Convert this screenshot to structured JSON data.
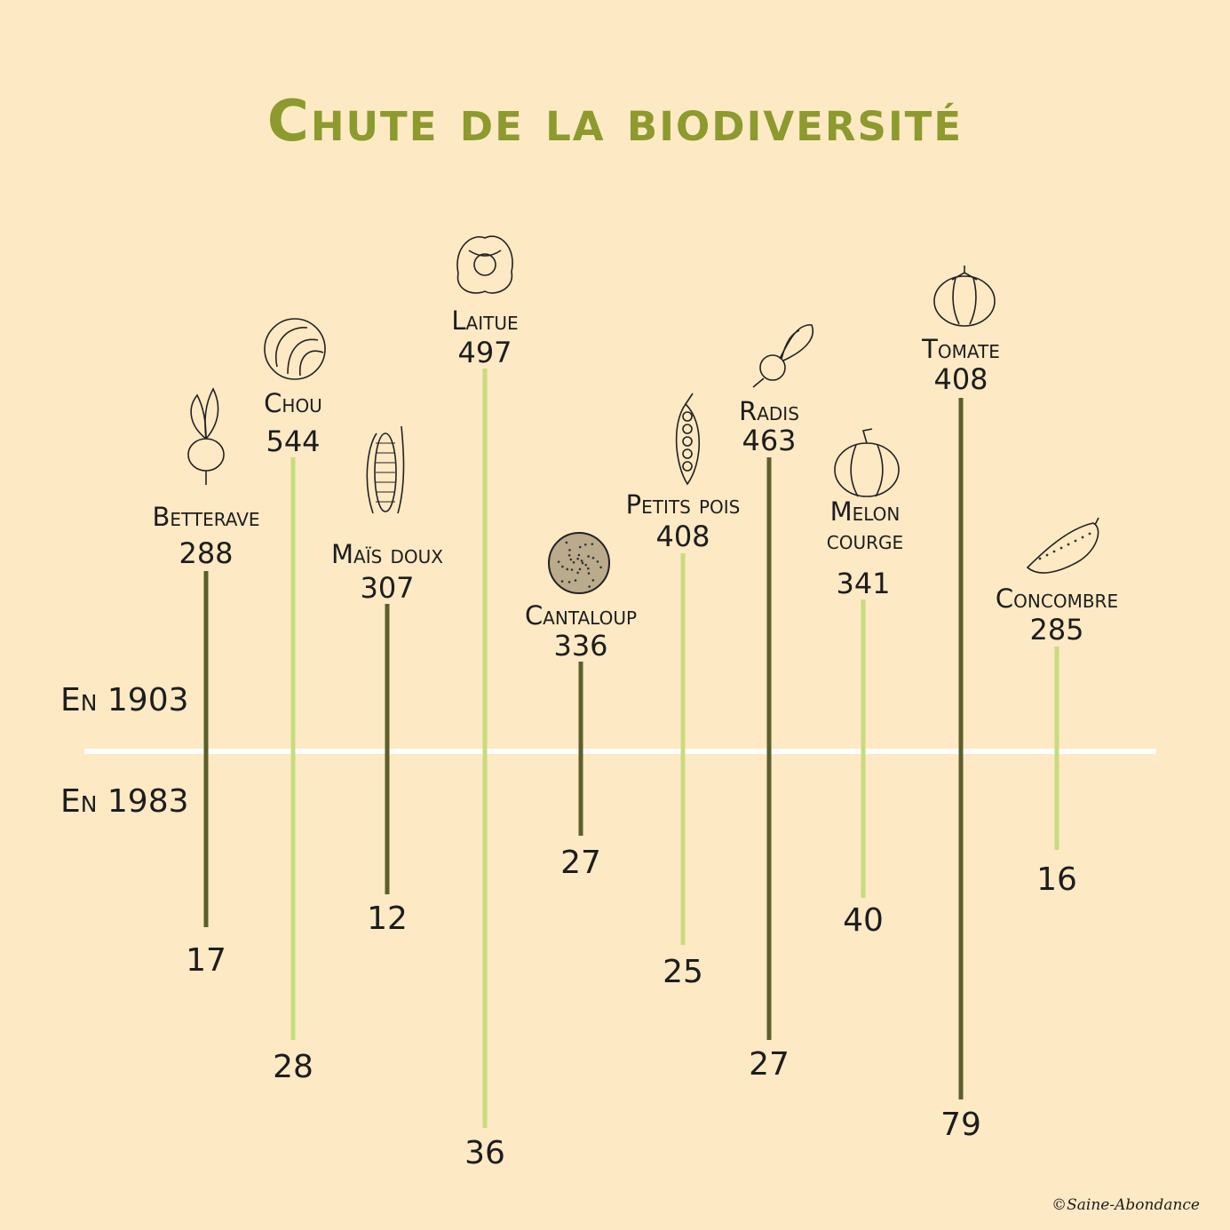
{
  "colors": {
    "background": "#fde9c4",
    "title": "#8c9a2e",
    "dark_line": "#5a5f2c",
    "light_line": "#c6dc7e",
    "baseline": "#ffffff"
  },
  "title": "Chute de la biodiversité",
  "legend": {
    "top": "En 1903",
    "bottom": "En 1983"
  },
  "credit": "©Saine-Abondance",
  "chart_data": {
    "type": "bar",
    "title": "Chute de la biodiversité",
    "series": [
      {
        "name": "En 1903",
        "values": [
          288,
          544,
          307,
          497,
          336,
          408,
          463,
          341,
          408,
          285
        ]
      },
      {
        "name": "En 1983",
        "values": [
          17,
          28,
          12,
          36,
          27,
          25,
          27,
          40,
          79,
          16
        ]
      }
    ],
    "categories": [
      {
        "name": "Betterave",
        "v1903": "288",
        "v1983": "17",
        "icon": "beet-icon",
        "tone": "dark"
      },
      {
        "name": "Chou",
        "v1903": "544",
        "v1983": "28",
        "icon": "cabbage-icon",
        "tone": "light"
      },
      {
        "name": "Maïs doux",
        "v1903": "307",
        "v1983": "12",
        "icon": "corn-icon",
        "tone": "dark"
      },
      {
        "name": "Laitue",
        "v1903": "497",
        "v1983": "36",
        "icon": "lettuce-icon",
        "tone": "light"
      },
      {
        "name": "Cantaloup",
        "v1903": "336",
        "v1983": "27",
        "icon": "cantaloupe-icon",
        "tone": "dark"
      },
      {
        "name": "Petits pois",
        "v1903": "408",
        "v1983": "25",
        "icon": "peapod-icon",
        "tone": "light"
      },
      {
        "name": "Radis",
        "v1903": "463",
        "v1983": "27",
        "icon": "radish-icon",
        "tone": "dark"
      },
      {
        "name": "Melon courge",
        "v1903": "341",
        "v1983": "40",
        "icon": "squash-icon",
        "tone": "light"
      },
      {
        "name": "Tomate",
        "v1903": "408",
        "v1983": "79",
        "icon": "tomato-icon",
        "tone": "dark"
      },
      {
        "name": "Concombre",
        "v1903": "285",
        "v1983": "16",
        "icon": "cucumber-icon",
        "tone": "light"
      }
    ]
  }
}
